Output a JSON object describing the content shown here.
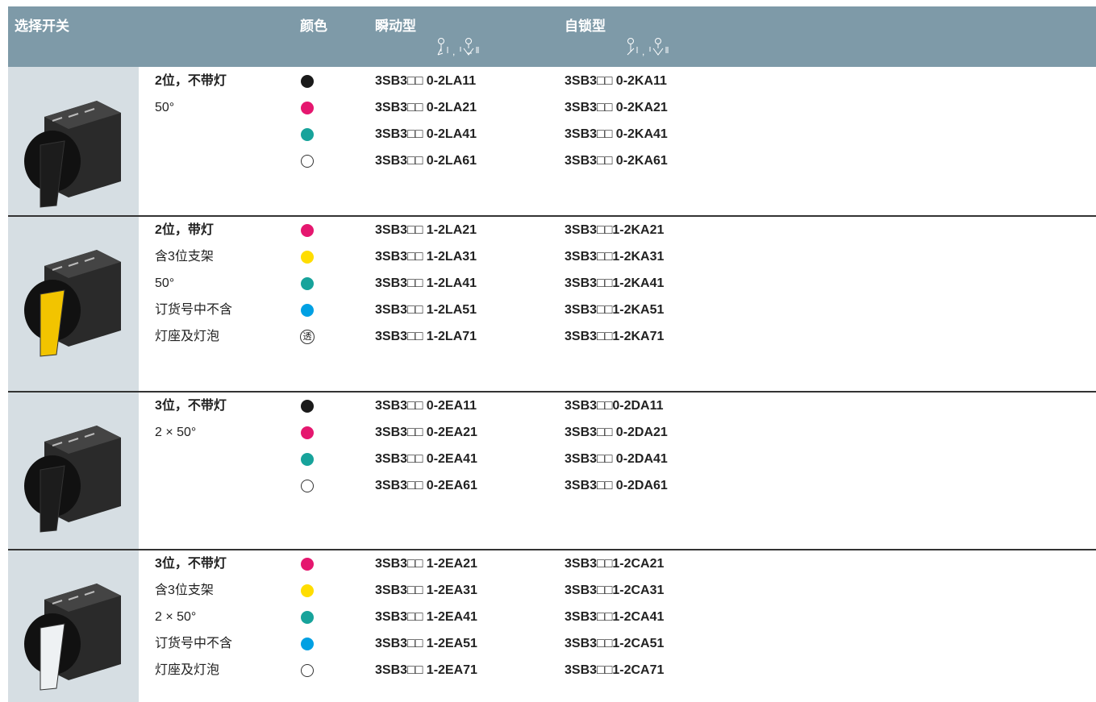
{
  "header": {
    "title": "选择开关",
    "color": "颜色",
    "momentary": "瞬动型",
    "latching": "自锁型"
  },
  "sections": [
    {
      "knob": "#1c1c1c",
      "description": [
        "2位，不带灯",
        "50°"
      ],
      "rows": [
        {
          "color": "#1a1a1a",
          "momentary": "3SB3□□ 0-2LA11",
          "latching": "3SB3□□ 0-2KA11"
        },
        {
          "color": "#e5176f",
          "momentary": "3SB3□□ 0-2LA21",
          "latching": "3SB3□□ 0-2KA21"
        },
        {
          "color": "#17a39b",
          "momentary": "3SB3□□ 0-2LA41",
          "latching": "3SB3□□ 0-2KA41"
        },
        {
          "color": "#ffffff",
          "momentary": "3SB3□□ 0-2LA61",
          "latching": "3SB3□□ 0-2KA61"
        }
      ]
    },
    {
      "knob": "#f2c400",
      "description": [
        "2位，带灯",
        "含3位支架",
        "50°",
        "订货号中不含",
        "灯座及灯泡"
      ],
      "rows": [
        {
          "color": "#e5176f",
          "momentary": "3SB3□□ 1-2LA21",
          "latching": "3SB3□□1-2KA21"
        },
        {
          "color": "#ffdd00",
          "momentary": "3SB3□□ 1-2LA31",
          "latching": "3SB3□□1-2KA31"
        },
        {
          "color": "#17a39b",
          "momentary": "3SB3□□ 1-2LA41",
          "latching": "3SB3□□1-2KA41"
        },
        {
          "color": "#00a0e3",
          "momentary": "3SB3□□ 1-2LA51",
          "latching": "3SB3□□1-2KA51"
        },
        {
          "color": "透",
          "momentary": "3SB3□□ 1-2LA71",
          "latching": "3SB3□□1-2KA71"
        }
      ]
    },
    {
      "knob": "#1c1c1c",
      "description": [
        "3位，不带灯",
        "2 × 50°"
      ],
      "rows": [
        {
          "color": "#1a1a1a",
          "momentary": "3SB3□□ 0-2EA11",
          "latching": "3SB3□□0-2DA11"
        },
        {
          "color": "#e5176f",
          "momentary": "3SB3□□ 0-2EA21",
          "latching": "3SB3□□ 0-2DA21"
        },
        {
          "color": "#17a39b",
          "momentary": "3SB3□□ 0-2EA41",
          "latching": "3SB3□□ 0-2DA41"
        },
        {
          "color": "#ffffff",
          "momentary": "3SB3□□ 0-2EA61",
          "latching": "3SB3□□ 0-2DA61"
        }
      ]
    },
    {
      "knob": "#eef1f3",
      "description": [
        "3位，不带灯",
        "含3位支架",
        "2 × 50°",
        "订货号中不含",
        "灯座及灯泡"
      ],
      "rows": [
        {
          "color": "#e5176f",
          "momentary": "3SB3□□ 1-2EA21",
          "latching": "3SB3□□1-2CA21"
        },
        {
          "color": "#ffdd00",
          "momentary": "3SB3□□ 1-2EA31",
          "latching": "3SB3□□1-2CA31"
        },
        {
          "color": "#17a39b",
          "momentary": "3SB3□□ 1-2EA41",
          "latching": "3SB3□□1-2CA41"
        },
        {
          "color": "#00a0e3",
          "momentary": "3SB3□□ 1-2EA51",
          "latching": "3SB3□□1-2CA51"
        },
        {
          "color": "#ffffff",
          "momentary": "3SB3□□ 1-2EA71",
          "latching": "3SB3□□1-2CA71"
        }
      ]
    }
  ]
}
